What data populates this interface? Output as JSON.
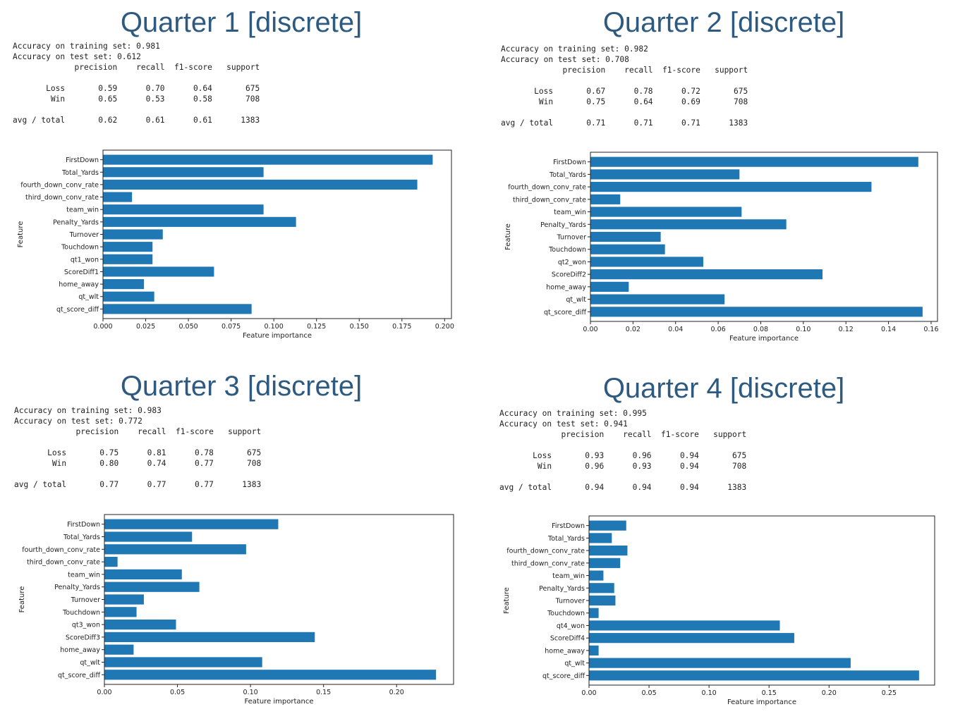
{
  "panels": [
    {
      "title": "Quarter 1 [discrete]",
      "report": "Accuracy on training set: 0.981\nAccuracy on test set: 0.612\n             precision    recall  f1-score   support\n\n       Loss       0.59      0.70      0.64       675\n        Win       0.65      0.53      0.58       708\n\navg / total       0.62      0.61      0.61      1383"
    },
    {
      "title": "Quarter 2 [discrete]",
      "report": "Accuracy on training set: 0.982\nAccuracy on test set: 0.708\n             precision    recall  f1-score   support\n\n       Loss       0.67      0.78      0.72       675\n        Win       0.75      0.64      0.69       708\n\navg / total       0.71      0.71      0.71      1383"
    },
    {
      "title": "Quarter 3 [discrete]",
      "report": "Accuracy on training set: 0.983\nAccuracy on test set: 0.772\n             precision    recall  f1-score   support\n\n       Loss       0.75      0.81      0.78       675\n        Win       0.80      0.74      0.77       708\n\navg / total       0.77      0.77      0.77      1383"
    },
    {
      "title": "Quarter 4 [discrete]",
      "report": "Accuracy on training set: 0.995\nAccuracy on test set: 0.941\n             precision    recall  f1-score   support\n\n       Loss       0.93      0.96      0.94       675\n        Win       0.96      0.93      0.94       708\n\navg / total       0.94      0.94      0.94      1383"
    }
  ],
  "chart_data": [
    {
      "type": "bar",
      "orientation": "horizontal",
      "color": "#1f77b4",
      "categories": [
        "FirstDown",
        "Total_Yards",
        "fourth_down_conv_rate",
        "third_down_conv_rate",
        "team_win",
        "Penalty_Yards",
        "Turnover",
        "Touchdown",
        "qt1_won",
        "ScoreDiff1",
        "home_away",
        "qt_wlt",
        "qt_score_diff"
      ],
      "values": [
        0.193,
        0.094,
        0.184,
        0.017,
        0.094,
        0.113,
        0.035,
        0.029,
        0.029,
        0.065,
        0.024,
        0.03,
        0.087
      ],
      "xlabel": "Feature importance",
      "ylabel": "Feature",
      "xlim": [
        0,
        0.204
      ],
      "xticks": [
        0,
        0.025,
        0.05,
        0.075,
        0.1,
        0.125,
        0.15,
        0.175,
        0.2
      ],
      "xtick_labels": [
        "0.000",
        "0.025",
        "0.050",
        "0.075",
        "0.100",
        "0.125",
        "0.150",
        "0.175",
        "0.200"
      ]
    },
    {
      "type": "bar",
      "orientation": "horizontal",
      "color": "#1f77b4",
      "categories": [
        "FirstDown",
        "Total_Yards",
        "fourth_down_conv_rate",
        "third_down_conv_rate",
        "team_win",
        "Penalty_Yards",
        "Turnover",
        "Touchdown",
        "qt2_won",
        "ScoreDiff2",
        "home_away",
        "qt_wlt",
        "qt_score_diff"
      ],
      "values": [
        0.154,
        0.07,
        0.132,
        0.014,
        0.071,
        0.092,
        0.033,
        0.035,
        0.053,
        0.109,
        0.018,
        0.063,
        0.156
      ],
      "xlabel": "Feature importance",
      "ylabel": "Feature",
      "xlim": [
        0,
        0.163
      ],
      "xticks": [
        0,
        0.02,
        0.04,
        0.06,
        0.08,
        0.1,
        0.12,
        0.14,
        0.16
      ],
      "xtick_labels": [
        "0.00",
        "0.02",
        "0.04",
        "0.06",
        "0.08",
        "0.10",
        "0.12",
        "0.14",
        "0.16"
      ]
    },
    {
      "type": "bar",
      "orientation": "horizontal",
      "color": "#1f77b4",
      "categories": [
        "FirstDown",
        "Total_Yards",
        "fourth_down_conv_rate",
        "third_down_conv_rate",
        "team_win",
        "Penalty_Yards",
        "Turnover",
        "Touchdown",
        "qt3_won",
        "ScoreDiff3",
        "home_away",
        "qt_wlt",
        "qt_score_diff"
      ],
      "values": [
        0.119,
        0.06,
        0.097,
        0.009,
        0.053,
        0.065,
        0.027,
        0.022,
        0.049,
        0.144,
        0.02,
        0.108,
        0.227
      ],
      "xlabel": "Feature importance",
      "ylabel": "Feature",
      "xlim": [
        0,
        0.239
      ],
      "xticks": [
        0,
        0.05,
        0.1,
        0.15,
        0.2
      ],
      "xtick_labels": [
        "0.00",
        "0.05",
        "0.10",
        "0.15",
        "0.20"
      ]
    },
    {
      "type": "bar",
      "orientation": "horizontal",
      "color": "#1f77b4",
      "categories": [
        "FirstDown",
        "Total_Yards",
        "fourth_down_conv_rate",
        "third_down_conv_rate",
        "team_win",
        "Penalty_Yards",
        "Turnover",
        "Touchdown",
        "qt4_won",
        "ScoreDiff4",
        "home_away",
        "qt_wlt",
        "qt_score_diff"
      ],
      "values": [
        0.031,
        0.019,
        0.032,
        0.026,
        0.012,
        0.021,
        0.022,
        0.008,
        0.159,
        0.171,
        0.008,
        0.218,
        0.275
      ],
      "xlabel": "Feature importance",
      "ylabel": "Feature",
      "xlim": [
        0,
        0.288
      ],
      "xticks": [
        0,
        0.05,
        0.1,
        0.15,
        0.2,
        0.25
      ],
      "xtick_labels": [
        "0.00",
        "0.05",
        "0.10",
        "0.15",
        "0.20",
        "0.25"
      ]
    }
  ]
}
